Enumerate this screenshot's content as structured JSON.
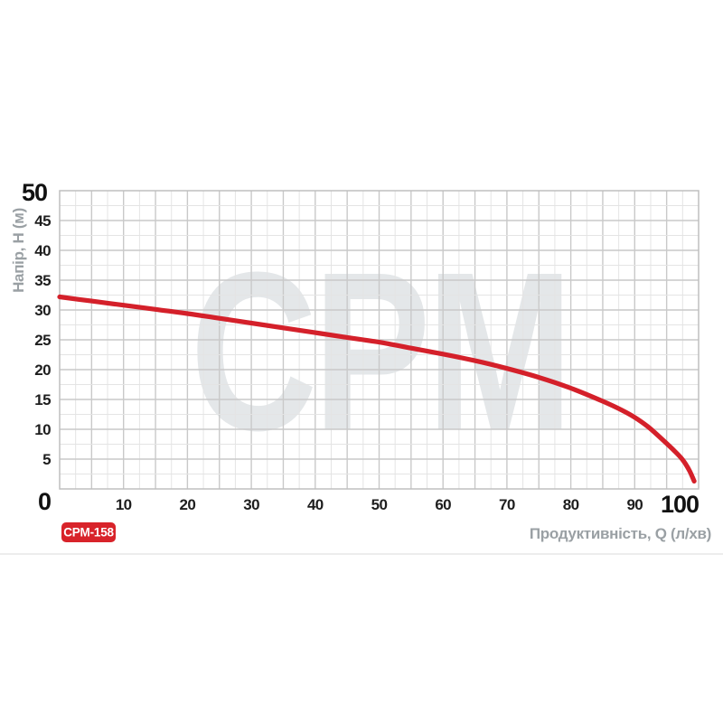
{
  "chart_data": {
    "type": "line",
    "watermark": "CPM",
    "model": "CPM-158",
    "xlabel": "Продуктивність, Q (л/хв)",
    "ylabel": "Напір, H (м)",
    "xlim": [
      0,
      100
    ],
    "ylim": [
      0,
      50
    ],
    "x_ticks": [
      0,
      10,
      20,
      30,
      40,
      50,
      60,
      70,
      80,
      90,
      100
    ],
    "y_ticks": [
      0,
      5,
      10,
      15,
      20,
      25,
      30,
      35,
      40,
      45,
      50
    ],
    "x_minor_step": 2.5,
    "y_minor_step": 2.5,
    "emphasized_x_ticks": [
      0,
      100
    ],
    "emphasized_y_ticks": [
      0,
      50
    ],
    "grid": true,
    "legend": false,
    "series": [
      {
        "name": "CPM-158",
        "x": [
          0,
          5,
          10,
          15,
          20,
          25,
          30,
          35,
          40,
          45,
          50,
          55,
          60,
          65,
          70,
          75,
          80,
          85,
          88,
          90,
          92,
          94,
          96,
          97.5,
          98.6,
          99.3
        ],
        "y": [
          32.2,
          31.5,
          30.8,
          30.1,
          29.4,
          28.6,
          27.8,
          27.0,
          26.2,
          25.4,
          24.6,
          23.6,
          22.6,
          21.5,
          20.2,
          18.7,
          16.9,
          14.7,
          13.2,
          12.0,
          10.5,
          8.6,
          6.6,
          4.9,
          3.0,
          1.3
        ]
      }
    ],
    "colors": {
      "curve": "#d4202a",
      "badge_background": "#d8232a",
      "badge_text": "#ffffff",
      "grid_minor": "#e4e4e4",
      "grid_major": "#c9c9c9",
      "plot_border": "#bfbfbf",
      "tick_label": "#1e1e1e",
      "axis_title": "#9aa0a4",
      "watermark": "#e4e7e9",
      "divider": "#ededed"
    }
  }
}
